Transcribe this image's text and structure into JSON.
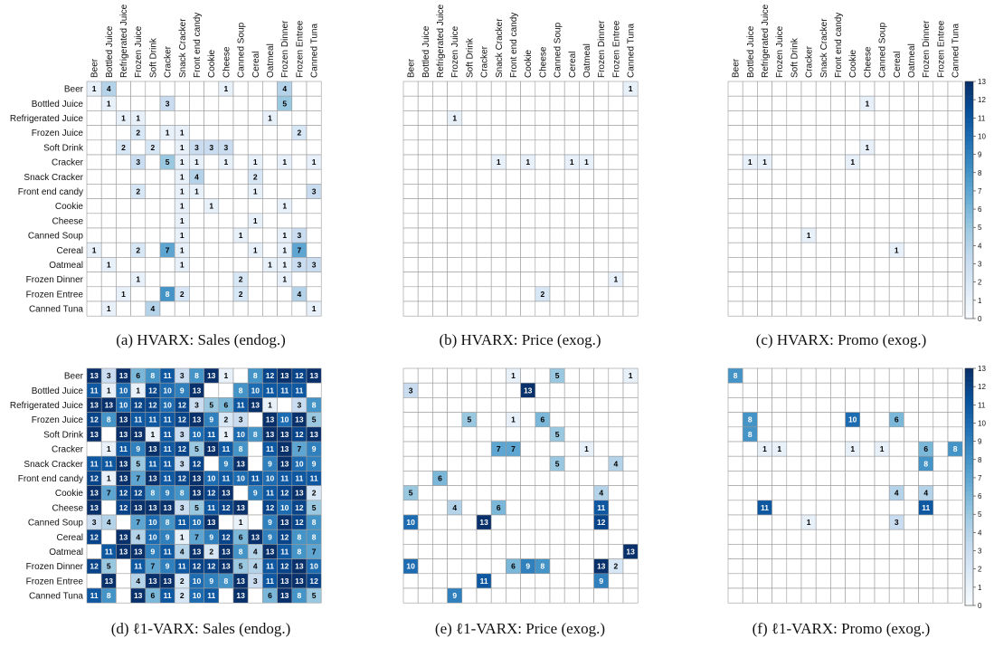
{
  "figure": {
    "variables": [
      "Beer",
      "Bottled Juice",
      "Refrigerated Juice",
      "Frozen Juice",
      "Soft Drink",
      "Cracker",
      "Snack Cracker",
      "Front end candy",
      "Cookie",
      "Cheese",
      "Canned Soup",
      "Cereal",
      "Oatmeal",
      "Frozen Dinner",
      "Frozen Entree",
      "Canned Tuna"
    ],
    "colorbar_ticks": [
      0,
      1,
      2,
      3,
      4,
      5,
      6,
      7,
      8,
      9,
      10,
      11,
      12,
      13
    ],
    "colors": {
      "high": "#08306b",
      "low": "#f7fbff",
      "grid": "#9a9a9a",
      "light_text": "#ffffff",
      "dark_text": "#000000"
    }
  },
  "chart_data": [
    {
      "type": "heatmap",
      "id": "a",
      "title": "(a) HVARX: Sales (endog.)",
      "range": [
        0,
        13
      ],
      "nonzero_cells": [
        [
          0,
          0,
          1
        ],
        [
          0,
          1,
          4
        ],
        [
          0,
          9,
          1
        ],
        [
          0,
          13,
          4
        ],
        [
          1,
          1,
          1
        ],
        [
          1,
          5,
          3
        ],
        [
          1,
          13,
          5
        ],
        [
          2,
          2,
          1
        ],
        [
          2,
          3,
          1
        ],
        [
          2,
          12,
          1
        ],
        [
          3,
          3,
          2
        ],
        [
          3,
          5,
          1
        ],
        [
          3,
          6,
          1
        ],
        [
          3,
          14,
          2
        ],
        [
          4,
          2,
          2
        ],
        [
          4,
          4,
          2
        ],
        [
          4,
          6,
          1
        ],
        [
          4,
          7,
          3
        ],
        [
          4,
          8,
          3
        ],
        [
          4,
          9,
          3
        ],
        [
          5,
          3,
          3
        ],
        [
          5,
          5,
          5
        ],
        [
          5,
          6,
          1
        ],
        [
          5,
          7,
          1
        ],
        [
          5,
          9,
          1
        ],
        [
          5,
          11,
          1
        ],
        [
          5,
          13,
          1
        ],
        [
          5,
          15,
          1
        ],
        [
          6,
          6,
          1
        ],
        [
          6,
          7,
          4
        ],
        [
          6,
          11,
          2
        ],
        [
          7,
          3,
          2
        ],
        [
          7,
          6,
          1
        ],
        [
          7,
          7,
          1
        ],
        [
          7,
          11,
          1
        ],
        [
          7,
          15,
          3
        ],
        [
          8,
          6,
          1
        ],
        [
          8,
          8,
          1
        ],
        [
          8,
          13,
          1
        ],
        [
          9,
          6,
          1
        ],
        [
          9,
          11,
          1
        ],
        [
          10,
          6,
          1
        ],
        [
          10,
          10,
          1
        ],
        [
          10,
          13,
          1
        ],
        [
          10,
          14,
          3
        ],
        [
          11,
          0,
          1
        ],
        [
          11,
          3,
          2
        ],
        [
          11,
          5,
          7
        ],
        [
          11,
          6,
          1
        ],
        [
          11,
          11,
          1
        ],
        [
          11,
          13,
          1
        ],
        [
          11,
          14,
          7
        ],
        [
          12,
          1,
          1
        ],
        [
          12,
          6,
          1
        ],
        [
          12,
          12,
          1
        ],
        [
          12,
          13,
          1
        ],
        [
          12,
          14,
          3
        ],
        [
          12,
          15,
          3
        ],
        [
          13,
          3,
          1
        ],
        [
          13,
          10,
          2
        ],
        [
          13,
          13,
          1
        ],
        [
          14,
          2,
          1
        ],
        [
          14,
          5,
          8
        ],
        [
          14,
          6,
          2
        ],
        [
          14,
          10,
          2
        ],
        [
          14,
          14,
          4
        ],
        [
          15,
          1,
          1
        ],
        [
          15,
          4,
          4
        ],
        [
          15,
          15,
          1
        ]
      ]
    },
    {
      "type": "heatmap",
      "id": "b",
      "title": "(b) HVARX: Price (exog.)",
      "range": [
        0,
        13
      ],
      "nonzero_cells": [
        [
          0,
          15,
          1
        ],
        [
          2,
          3,
          1
        ],
        [
          5,
          6,
          1
        ],
        [
          5,
          8,
          1
        ],
        [
          5,
          11,
          1
        ],
        [
          5,
          12,
          1
        ],
        [
          13,
          14,
          1
        ],
        [
          14,
          9,
          2
        ]
      ]
    },
    {
      "type": "heatmap",
      "id": "c",
      "title": "(c) HVARX: Promo (exog.)",
      "range": [
        0,
        13
      ],
      "nonzero_cells": [
        [
          1,
          9,
          1
        ],
        [
          4,
          9,
          1
        ],
        [
          5,
          1,
          1
        ],
        [
          5,
          2,
          1
        ],
        [
          5,
          8,
          1
        ],
        [
          10,
          5,
          1
        ],
        [
          11,
          11,
          1
        ]
      ]
    },
    {
      "type": "heatmap",
      "id": "d",
      "title": "(d) ℓ1-VARX: Sales (endog.)",
      "range": [
        0,
        13
      ],
      "matrix": [
        [
          13,
          3,
          13,
          6,
          8,
          11,
          3,
          8,
          13,
          1,
          0,
          8,
          12,
          13,
          12,
          13
        ],
        [
          11,
          1,
          10,
          1,
          12,
          10,
          9,
          13,
          0,
          0,
          8,
          10,
          11,
          11,
          11,
          0
        ],
        [
          13,
          13,
          10,
          12,
          12,
          10,
          12,
          3,
          5,
          6,
          11,
          13,
          1,
          0,
          3,
          8
        ],
        [
          12,
          8,
          13,
          11,
          11,
          11,
          12,
          13,
          9,
          2,
          3,
          0,
          13,
          10,
          13,
          5
        ],
        [
          13,
          0,
          13,
          13,
          1,
          11,
          3,
          10,
          11,
          1,
          10,
          8,
          13,
          13,
          12,
          13
        ],
        [
          0,
          1,
          11,
          9,
          13,
          11,
          12,
          5,
          13,
          11,
          8,
          0,
          11,
          13,
          7,
          9
        ],
        [
          11,
          11,
          13,
          5,
          11,
          11,
          3,
          12,
          0,
          9,
          13,
          0,
          9,
          13,
          10,
          9
        ],
        [
          12,
          1,
          13,
          7,
          13,
          11,
          12,
          13,
          10,
          11,
          10,
          11,
          10,
          11,
          11,
          11
        ],
        [
          13,
          7,
          12,
          12,
          8,
          9,
          8,
          13,
          12,
          13,
          0,
          9,
          11,
          12,
          13,
          2
        ],
        [
          13,
          0,
          12,
          13,
          13,
          13,
          3,
          5,
          11,
          12,
          13,
          0,
          12,
          10,
          12,
          5
        ],
        [
          3,
          4,
          0,
          7,
          10,
          8,
          11,
          10,
          13,
          0,
          1,
          0,
          9,
          13,
          12,
          8
        ],
        [
          12,
          0,
          13,
          4,
          10,
          9,
          1,
          7,
          9,
          12,
          6,
          13,
          9,
          12,
          8,
          8
        ],
        [
          0,
          11,
          13,
          13,
          9,
          11,
          4,
          13,
          2,
          13,
          8,
          4,
          13,
          11,
          8,
          7
        ],
        [
          12,
          5,
          0,
          11,
          7,
          9,
          11,
          12,
          12,
          13,
          5,
          4,
          11,
          12,
          13,
          10
        ],
        [
          0,
          13,
          0,
          4,
          13,
          13,
          2,
          10,
          9,
          8,
          13,
          3,
          11,
          13,
          13,
          12
        ],
        [
          11,
          8,
          0,
          13,
          6,
          11,
          2,
          10,
          11,
          0,
          13,
          0,
          6,
          13,
          8,
          5
        ]
      ]
    },
    {
      "type": "heatmap",
      "id": "e",
      "title": "(e) ℓ1-VARX: Price (exog.)",
      "range": [
        0,
        13
      ],
      "nonzero_cells": [
        [
          0,
          7,
          1
        ],
        [
          0,
          10,
          5
        ],
        [
          0,
          15,
          1
        ],
        [
          1,
          0,
          3
        ],
        [
          1,
          8,
          13
        ],
        [
          3,
          4,
          5
        ],
        [
          3,
          7,
          1
        ],
        [
          3,
          9,
          6
        ],
        [
          4,
          10,
          5
        ],
        [
          5,
          6,
          7
        ],
        [
          5,
          7,
          7
        ],
        [
          5,
          12,
          1
        ],
        [
          6,
          10,
          5
        ],
        [
          6,
          14,
          4
        ],
        [
          7,
          2,
          6
        ],
        [
          8,
          0,
          5
        ],
        [
          8,
          13,
          4
        ],
        [
          9,
          3,
          4
        ],
        [
          9,
          6,
          6
        ],
        [
          9,
          13,
          11
        ],
        [
          10,
          0,
          10
        ],
        [
          10,
          5,
          13
        ],
        [
          10,
          13,
          12
        ],
        [
          12,
          15,
          13
        ],
        [
          13,
          0,
          10
        ],
        [
          13,
          7,
          6
        ],
        [
          13,
          8,
          9
        ],
        [
          13,
          9,
          8
        ],
        [
          13,
          13,
          13
        ],
        [
          13,
          14,
          2
        ],
        [
          14,
          5,
          11
        ],
        [
          14,
          13,
          9
        ],
        [
          15,
          3,
          9
        ]
      ]
    },
    {
      "type": "heatmap",
      "id": "f",
      "title": "(f) ℓ1-VARX: Promo (exog.)",
      "range": [
        0,
        13
      ],
      "nonzero_cells": [
        [
          0,
          0,
          8
        ],
        [
          3,
          1,
          8
        ],
        [
          3,
          8,
          10
        ],
        [
          3,
          11,
          6
        ],
        [
          4,
          1,
          8
        ],
        [
          5,
          2,
          1
        ],
        [
          5,
          3,
          1
        ],
        [
          5,
          8,
          1
        ],
        [
          5,
          10,
          1
        ],
        [
          5,
          13,
          6
        ],
        [
          5,
          15,
          8
        ],
        [
          6,
          13,
          8
        ],
        [
          8,
          11,
          4
        ],
        [
          8,
          13,
          4
        ],
        [
          9,
          2,
          11
        ],
        [
          9,
          13,
          11
        ],
        [
          10,
          5,
          1
        ],
        [
          10,
          11,
          3
        ]
      ]
    }
  ]
}
